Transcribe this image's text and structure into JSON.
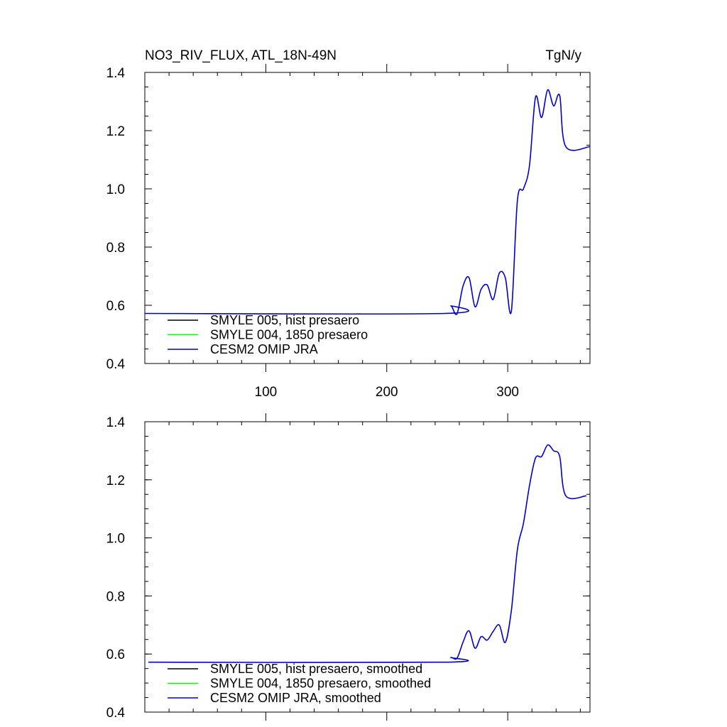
{
  "chart_data": [
    {
      "type": "line",
      "title": "NO3_RIV_FLUX, ATL_18N-49N",
      "units": "TgN/y",
      "xlim": [
        0,
        368
      ],
      "ylim": [
        0.4,
        1.4
      ],
      "xticks": [
        100,
        200,
        300
      ],
      "yticks": [
        0.4,
        0.6,
        0.8,
        1.0,
        1.2,
        1.4
      ],
      "ytick_labels": [
        "0.4",
        "0.6",
        "0.8",
        "1.0",
        "1.2",
        "1.4"
      ],
      "legend_position": "bottom-left",
      "series": [
        {
          "name": "SMYLE 005, hist presaero",
          "color": "#000000",
          "x": [],
          "y": []
        },
        {
          "name": "SMYLE 004, 1850 presaero",
          "color": "#00ff00",
          "x": [],
          "y": []
        },
        {
          "name": "CESM2 OMIP JRA",
          "color": "#0000cc",
          "x": [
            0,
            248,
            253,
            258,
            263,
            268,
            273,
            278,
            283,
            288,
            293,
            298,
            303,
            308,
            313,
            318,
            323,
            328,
            333,
            338,
            343,
            348,
            368
          ],
          "y": [
            0.572,
            0.572,
            0.598,
            0.57,
            0.665,
            0.695,
            0.595,
            0.655,
            0.67,
            0.62,
            0.71,
            0.695,
            0.58,
            0.96,
            1.0,
            1.08,
            1.315,
            1.245,
            1.34,
            1.285,
            1.32,
            1.145,
            1.145
          ]
        }
      ]
    },
    {
      "type": "line",
      "xlim": [
        0,
        368
      ],
      "ylim": [
        0.4,
        1.4
      ],
      "xticks": [
        100,
        200,
        300
      ],
      "yticks": [
        0.4,
        0.6,
        0.8,
        1.0,
        1.2,
        1.4
      ],
      "ytick_labels": [
        "0.4",
        "0.6",
        "0.8",
        "1.0",
        "1.2",
        "1.4"
      ],
      "legend_position": "bottom-left",
      "series": [
        {
          "name": "SMYLE 005, hist presaero, smoothed",
          "color": "#000000",
          "x": [],
          "y": []
        },
        {
          "name": "SMYLE 004, 1850 presaero, smoothed",
          "color": "#00ff00",
          "x": [],
          "y": []
        },
        {
          "name": "CESM2 OMIP JRA, smoothed",
          "color": "#0000cc",
          "x": [
            3,
            248,
            253,
            258,
            263,
            268,
            273,
            278,
            283,
            288,
            293,
            298,
            303,
            308,
            313,
            318,
            323,
            328,
            333,
            338,
            343,
            348,
            365
          ],
          "y": [
            0.572,
            0.572,
            0.588,
            0.585,
            0.64,
            0.68,
            0.62,
            0.66,
            0.648,
            0.678,
            0.7,
            0.64,
            0.75,
            0.96,
            1.05,
            1.18,
            1.275,
            1.28,
            1.32,
            1.3,
            1.28,
            1.145,
            1.145
          ]
        }
      ]
    }
  ]
}
